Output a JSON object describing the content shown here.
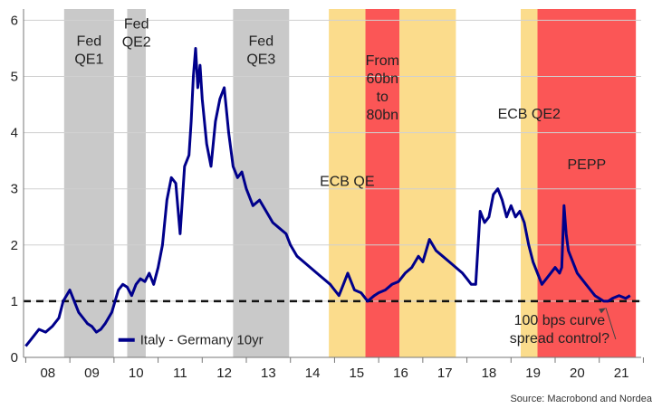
{
  "chart_data": {
    "type": "line",
    "title": "",
    "xlabel": "",
    "ylabel": "",
    "ylim": [
      0,
      6.2
    ],
    "xlim": [
      2007.95,
      2021.95
    ],
    "y_ticks": [
      0,
      1,
      2,
      3,
      4,
      5,
      6
    ],
    "x_tick_labels": [
      "08",
      "09",
      "10",
      "11",
      "12",
      "13",
      "14",
      "15",
      "16",
      "17",
      "18",
      "19",
      "20",
      "21"
    ],
    "grid": "horizontal",
    "legend_position": "bottom-left",
    "reference_line": {
      "y": 1,
      "style": "dashed"
    },
    "series": [
      {
        "name": "Italy - Germany 10yr",
        "color": "#00008b",
        "x": [
          2008.0,
          2008.1,
          2008.2,
          2008.3,
          2008.45,
          2008.6,
          2008.75,
          2008.85,
          2009.0,
          2009.1,
          2009.2,
          2009.3,
          2009.4,
          2009.5,
          2009.6,
          2009.7,
          2009.8,
          2009.95,
          2010.1,
          2010.2,
          2010.3,
          2010.4,
          2010.5,
          2010.6,
          2010.7,
          2010.8,
          2010.9,
          2011.0,
          2011.1,
          2011.2,
          2011.3,
          2011.4,
          2011.5,
          2011.6,
          2011.7,
          2011.75,
          2011.8,
          2011.85,
          2011.9,
          2011.95,
          2012.0,
          2012.1,
          2012.2,
          2012.3,
          2012.4,
          2012.5,
          2012.6,
          2012.7,
          2012.8,
          2012.9,
          2013.0,
          2013.15,
          2013.3,
          2013.45,
          2013.6,
          2013.75,
          2013.9,
          2014.0,
          2014.15,
          2014.3,
          2014.45,
          2014.6,
          2014.75,
          2014.9,
          2015.0,
          2015.1,
          2015.2,
          2015.3,
          2015.45,
          2015.6,
          2015.75,
          2015.9,
          2016.0,
          2016.15,
          2016.3,
          2016.45,
          2016.6,
          2016.75,
          2016.9,
          2017.0,
          2017.15,
          2017.3,
          2017.45,
          2017.6,
          2017.75,
          2017.9,
          2018.0,
          2018.1,
          2018.2,
          2018.3,
          2018.4,
          2018.5,
          2018.6,
          2018.7,
          2018.8,
          2018.9,
          2019.0,
          2019.1,
          2019.2,
          2019.3,
          2019.4,
          2019.5,
          2019.6,
          2019.7,
          2019.8,
          2019.9,
          2020.0,
          2020.1,
          2020.15,
          2020.2,
          2020.25,
          2020.3,
          2020.4,
          2020.5,
          2020.6,
          2020.7,
          2020.8,
          2020.9,
          2021.0,
          2021.1,
          2021.2,
          2021.3,
          2021.45,
          2021.6,
          2021.7
        ],
        "values": [
          0.2,
          0.3,
          0.4,
          0.5,
          0.45,
          0.55,
          0.7,
          1.0,
          1.2,
          1.0,
          0.8,
          0.7,
          0.6,
          0.55,
          0.45,
          0.5,
          0.6,
          0.8,
          1.2,
          1.3,
          1.25,
          1.1,
          1.3,
          1.4,
          1.35,
          1.5,
          1.3,
          1.6,
          2.0,
          2.8,
          3.2,
          3.1,
          2.2,
          3.4,
          3.6,
          4.2,
          5.0,
          5.5,
          4.8,
          5.2,
          4.6,
          3.8,
          3.4,
          4.2,
          4.6,
          4.8,
          4.0,
          3.4,
          3.2,
          3.3,
          3.0,
          2.7,
          2.8,
          2.6,
          2.4,
          2.3,
          2.2,
          2.0,
          1.8,
          1.7,
          1.6,
          1.5,
          1.4,
          1.3,
          1.2,
          1.1,
          1.3,
          1.5,
          1.2,
          1.15,
          1.0,
          1.1,
          1.15,
          1.2,
          1.3,
          1.35,
          1.5,
          1.6,
          1.8,
          1.7,
          2.1,
          1.9,
          1.8,
          1.7,
          1.6,
          1.5,
          1.4,
          1.3,
          1.3,
          2.6,
          2.4,
          2.5,
          2.9,
          3.0,
          2.8,
          2.5,
          2.7,
          2.5,
          2.6,
          2.4,
          2.0,
          1.7,
          1.5,
          1.3,
          1.4,
          1.5,
          1.6,
          1.5,
          1.6,
          2.7,
          2.2,
          1.9,
          1.7,
          1.5,
          1.4,
          1.3,
          1.2,
          1.1,
          1.05,
          1.0,
          1.0,
          1.05,
          1.1,
          1.05,
          1.1
        ]
      }
    ],
    "shaded_periods": [
      {
        "label": [
          "Fed",
          "QE1"
        ],
        "start": 2008.87,
        "end": 2010.0,
        "color": "#c9c9c9",
        "label_y": 5.55
      },
      {
        "label": [
          "Fed",
          "QE2"
        ],
        "start": 2010.3,
        "end": 2010.72,
        "color": "#c9c9c9",
        "label_y": 5.85
      },
      {
        "label": [
          "Fed",
          "QE3"
        ],
        "start": 2012.7,
        "end": 2013.97,
        "color": "#c9c9c9",
        "label_y": 5.55
      },
      {
        "label": [
          "ECB QE"
        ],
        "start": 2014.87,
        "end": 2015.7,
        "color": "#fbdc8c",
        "label_y": 3.05
      },
      {
        "label": [
          "From",
          "60bn",
          "to",
          "80bn"
        ],
        "start": 2015.7,
        "end": 2016.47,
        "color": "#fb5656",
        "label_y": 5.2
      },
      {
        "label": [],
        "start": 2016.47,
        "end": 2017.75,
        "color": "#fbdc8c",
        "label_y": 0
      },
      {
        "label": [
          "ECB QE2"
        ],
        "start": 2019.22,
        "end": 2019.6,
        "color": "#fbdc8c",
        "label_y": 4.25
      },
      {
        "label": [
          "PEPP"
        ],
        "start": 2019.6,
        "end": 2021.83,
        "color": "#fb5656",
        "label_y": 3.35
      }
    ],
    "annotations": [
      {
        "text": [
          "100 bps curve",
          "spread control?"
        ],
        "x": 2020.1,
        "y": 0.58,
        "arrow_to": [
          2021.15,
          0.88
        ]
      }
    ],
    "source": "Source: Macrobond and Nordea"
  }
}
